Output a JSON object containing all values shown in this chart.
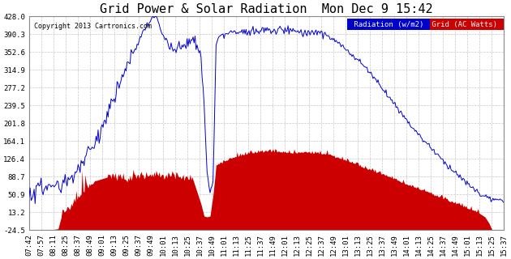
{
  "title": "Grid Power & Solar Radiation  Mon Dec 9 15:42",
  "copyright": "Copyright 2013 Cartronics.com",
  "background_color": "#ffffff",
  "plot_bg_color": "#ffffff",
  "grid_color": "#b0b0b0",
  "radiation_color": "#0000cc",
  "grid_power_color": "#cc0000",
  "yticks": [
    -24.5,
    13.2,
    50.9,
    88.7,
    126.4,
    164.1,
    201.8,
    239.5,
    277.2,
    314.9,
    352.6,
    390.3,
    428.0
  ],
  "ymin": -24.5,
  "ymax": 428.0,
  "title_fontsize": 11,
  "tick_fontsize": 6.5,
  "font_family": "monospace",
  "xtick_labels": [
    "07:42",
    "07:57",
    "08:11",
    "08:25",
    "08:37",
    "08:49",
    "09:01",
    "09:13",
    "09:25",
    "09:37",
    "09:49",
    "10:01",
    "10:13",
    "10:25",
    "10:37",
    "10:49",
    "11:01",
    "11:13",
    "11:25",
    "11:37",
    "11:49",
    "12:01",
    "12:13",
    "12:25",
    "12:37",
    "12:49",
    "13:01",
    "13:13",
    "13:25",
    "13:37",
    "13:49",
    "14:01",
    "14:13",
    "14:25",
    "14:37",
    "14:49",
    "15:01",
    "15:13",
    "15:25",
    "15:37"
  ]
}
